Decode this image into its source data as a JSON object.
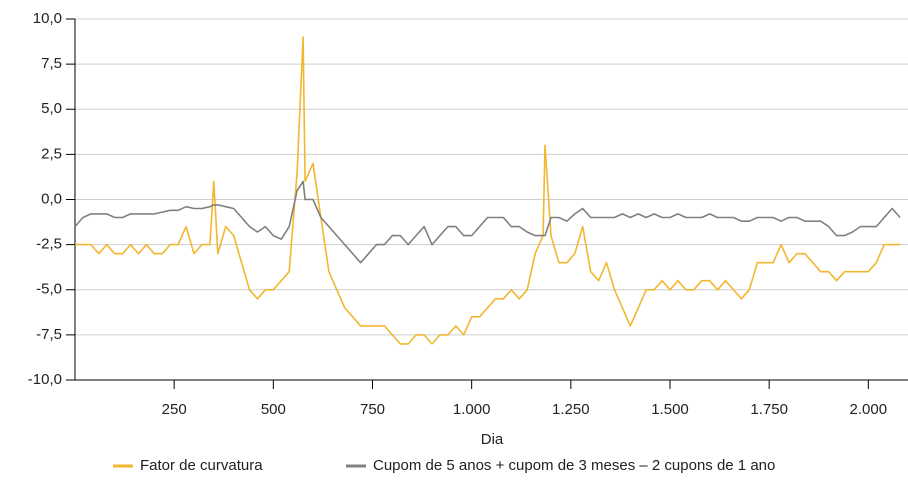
{
  "chart_data": {
    "type": "line",
    "x_label": "Dia",
    "x": [
      0,
      20,
      40,
      60,
      80,
      100,
      120,
      140,
      160,
      180,
      200,
      220,
      240,
      260,
      280,
      300,
      320,
      340,
      350,
      360,
      380,
      400,
      420,
      440,
      460,
      480,
      500,
      520,
      540,
      560,
      575,
      580,
      600,
      620,
      640,
      660,
      680,
      700,
      720,
      740,
      760,
      780,
      800,
      820,
      840,
      860,
      880,
      900,
      920,
      940,
      960,
      980,
      1000,
      1020,
      1040,
      1060,
      1080,
      1100,
      1120,
      1140,
      1160,
      1180,
      1185,
      1200,
      1220,
      1240,
      1260,
      1280,
      1300,
      1320,
      1340,
      1360,
      1380,
      1400,
      1420,
      1440,
      1460,
      1480,
      1500,
      1520,
      1540,
      1560,
      1580,
      1600,
      1620,
      1640,
      1660,
      1680,
      1700,
      1720,
      1740,
      1760,
      1780,
      1800,
      1820,
      1840,
      1860,
      1880,
      1900,
      1920,
      1940,
      1960,
      1980,
      2000,
      2020,
      2040,
      2060,
      2080
    ],
    "series": [
      {
        "name": "Fator de curvatura",
        "color": "#f2b731",
        "values": [
          -2.5,
          -2.5,
          -2.5,
          -3,
          -2.5,
          -3,
          -3,
          -2.5,
          -3,
          -2.5,
          -3,
          -3,
          -2.5,
          -2.5,
          -1.5,
          -3,
          -2.5,
          -2.5,
          1,
          -3,
          -1.5,
          -2,
          -3.5,
          -5,
          -5.5,
          -5,
          -5,
          -4.5,
          -4,
          1.5,
          9,
          1,
          2,
          -1,
          -4,
          -5,
          -6,
          -6.5,
          -7,
          -7,
          -7,
          -7,
          -7.5,
          -8,
          -8,
          -7.5,
          -7.5,
          -8,
          -7.5,
          -7.5,
          -7,
          -7.5,
          -6.5,
          -6.5,
          -6,
          -5.5,
          -5.5,
          -5,
          -5.5,
          -5,
          -3,
          -2,
          3,
          -2,
          -3.5,
          -3.5,
          -3,
          -1.5,
          -4,
          -4.5,
          -3.5,
          -5,
          -6,
          -7,
          -6,
          -5,
          -5,
          -4.5,
          -5,
          -4.5,
          -5,
          -5,
          -4.5,
          -4.5,
          -5,
          -4.5,
          -5,
          -5.5,
          -5,
          -3.5,
          -3.5,
          -3.5,
          -2.5,
          -3.5,
          -3,
          -3,
          -3.5,
          -4,
          -4,
          -4.5,
          -4,
          -4,
          -4,
          -4,
          -3.5,
          -2.5,
          -2.5,
          -2.5
        ]
      },
      {
        "name": "Cupom de 5 anos + cupom de 3 meses – 2 cupons de 1 ano",
        "color": "#808080",
        "values": [
          -1.5,
          -1,
          -0.8,
          -0.8,
          -0.8,
          -1,
          -1,
          -0.8,
          -0.8,
          -0.8,
          -0.8,
          -0.7,
          -0.6,
          -0.6,
          -0.4,
          -0.5,
          -0.5,
          -0.4,
          -0.3,
          -0.3,
          -0.4,
          -0.5,
          -1,
          -1.5,
          -1.8,
          -1.5,
          -2,
          -2.2,
          -1.5,
          0.5,
          1,
          0,
          0,
          -1,
          -1.5,
          -2,
          -2.5,
          -3,
          -3.5,
          -3,
          -2.5,
          -2.5,
          -2,
          -2,
          -2.5,
          -2,
          -1.5,
          -2.5,
          -2,
          -1.5,
          -1.5,
          -2,
          -2,
          -1.5,
          -1,
          -1,
          -1,
          -1.5,
          -1.5,
          -1.8,
          -2,
          -2,
          -2,
          -1,
          -1,
          -1.2,
          -0.8,
          -0.5,
          -1,
          -1,
          -1,
          -1,
          -0.8,
          -1,
          -0.8,
          -1,
          -0.8,
          -1,
          -1,
          -0.8,
          -1,
          -1,
          -1,
          -0.8,
          -1,
          -1,
          -1,
          -1.2,
          -1.2,
          -1,
          -1,
          -1,
          -1.2,
          -1,
          -1,
          -1.2,
          -1.2,
          -1.2,
          -1.5,
          -2,
          -2,
          -1.8,
          -1.5,
          -1.5,
          -1.5,
          -1,
          -0.5,
          -1
        ]
      }
    ],
    "xlim": [
      0,
      2100
    ],
    "xticks": [
      250,
      500,
      750,
      {
        "value": 1000,
        "label": "1.000"
      },
      {
        "value": 1250,
        "label": "1.250"
      },
      {
        "value": 1500,
        "label": "1.500"
      },
      {
        "value": 1750,
        "label": "1.750"
      },
      {
        "value": 2000,
        "label": "2.000"
      }
    ],
    "ylim": [
      -10,
      10
    ],
    "yticks": [
      {
        "value": -10,
        "label": "-10,0"
      },
      {
        "value": -7.5,
        "label": "-7,5"
      },
      {
        "value": -5,
        "label": "-5,0"
      },
      {
        "value": -2.5,
        "label": "-2,5"
      },
      {
        "value": 0,
        "label": "0,0"
      },
      {
        "value": 2.5,
        "label": "2,5"
      },
      {
        "value": 5,
        "label": "5,0"
      },
      {
        "value": 7.5,
        "label": "7,5"
      },
      {
        "value": 10,
        "label": "10,0"
      }
    ],
    "grid": true,
    "legend": "bottom"
  }
}
